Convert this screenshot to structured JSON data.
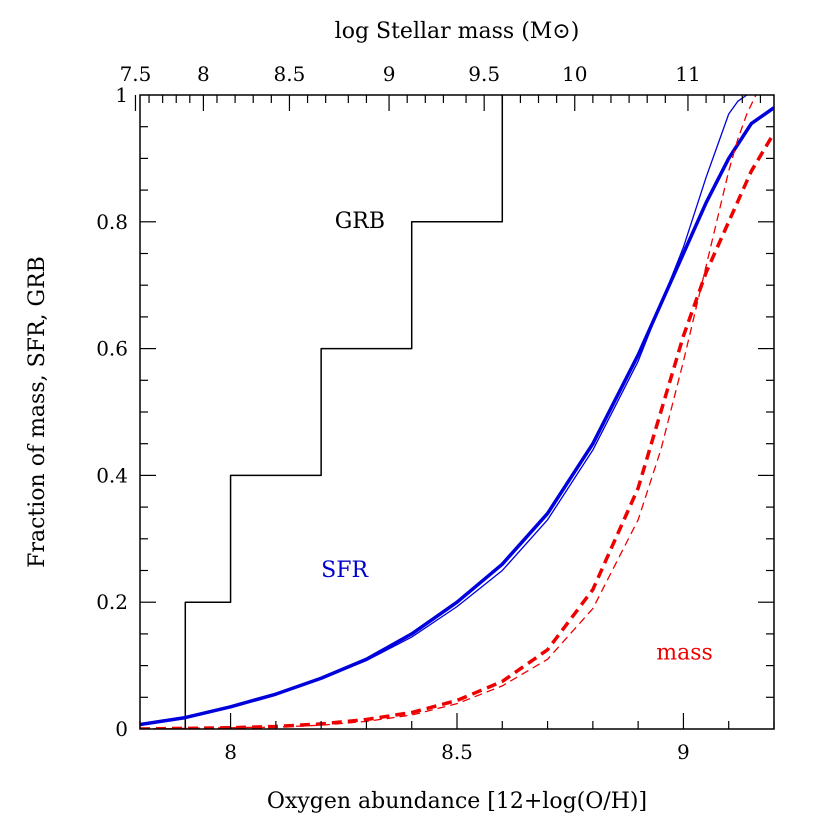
{
  "chart_data": {
    "type": "line",
    "xlabel": "Oxygen abundance [12+log(O/H)]",
    "ylabel": "Fraction of mass, SFR, GRB",
    "x2label": "log Stellar mass (M⊙)",
    "xlim": [
      7.8,
      9.2
    ],
    "ylim": [
      0,
      1
    ],
    "x_major_ticks": [
      8,
      8.5,
      9
    ],
    "x_major_tick_labels": [
      "8",
      "8.5",
      "9"
    ],
    "x_minor_step": 0.1,
    "y_major_ticks": [
      0,
      0.2,
      0.4,
      0.6,
      0.8,
      1
    ],
    "y_major_tick_labels": [
      "0",
      "0.2",
      "0.4",
      "0.6",
      "0.8",
      "1"
    ],
    "y_minor_step": 0.05,
    "top_axis": {
      "ticks": [
        {
          "label": "7.5",
          "oh": 7.79
        },
        {
          "label": "8",
          "oh": 7.94
        },
        {
          "label": "8.5",
          "oh": 8.13
        },
        {
          "label": "9",
          "oh": 8.35
        },
        {
          "label": "9.5",
          "oh": 8.56
        },
        {
          "label": "10",
          "oh": 8.76
        },
        {
          "label": "11",
          "oh": 9.01
        }
      ],
      "minor_ticks_oh": [
        7.82,
        7.85,
        7.88,
        7.91,
        7.97,
        8.01,
        8.05,
        8.09,
        8.17,
        8.21,
        8.26,
        8.3,
        8.39,
        8.43,
        8.47,
        8.52,
        8.6,
        8.64,
        8.68,
        8.72,
        8.8,
        8.84,
        8.88,
        8.92,
        8.96,
        9.05,
        9.09,
        9.13,
        9.17
      ]
    },
    "grid": false,
    "legend": "none",
    "annotations": [
      {
        "text": "GRB",
        "x": 8.23,
        "y": 0.79,
        "color": "#000000"
      },
      {
        "text": "SFR",
        "x": 8.2,
        "y": 0.24,
        "color": "#0000cc"
      },
      {
        "text": "mass",
        "x": 8.94,
        "y": 0.11,
        "color": "#ee0000"
      }
    ],
    "series": [
      {
        "id": "grb",
        "style": "step",
        "color": "#000000",
        "width": 1.5,
        "dash": "",
        "x": [
          7.9,
          7.9,
          8.0,
          8.0,
          8.2,
          8.2,
          8.4,
          8.4,
          8.6,
          8.6
        ],
        "y": [
          0,
          0.2,
          0.2,
          0.4,
          0.4,
          0.6,
          0.6,
          0.8,
          0.8,
          1.0
        ]
      },
      {
        "id": "sfr-thick",
        "style": "line",
        "color": "#0000dd",
        "width": 3.5,
        "dash": "",
        "x": [
          7.8,
          7.9,
          8.0,
          8.1,
          8.2,
          8.3,
          8.4,
          8.5,
          8.6,
          8.7,
          8.8,
          8.9,
          9.0,
          9.05,
          9.1,
          9.15,
          9.2
        ],
        "y": [
          0.007,
          0.018,
          0.035,
          0.055,
          0.08,
          0.11,
          0.15,
          0.2,
          0.26,
          0.34,
          0.45,
          0.59,
          0.75,
          0.83,
          0.9,
          0.955,
          0.98
        ]
      },
      {
        "id": "sfr-thin",
        "style": "line",
        "color": "#0000dd",
        "width": 1.3,
        "dash": "",
        "x": [
          7.8,
          7.9,
          8.0,
          8.1,
          8.2,
          8.3,
          8.4,
          8.5,
          8.6,
          8.7,
          8.8,
          8.9,
          9.0,
          9.05,
          9.08,
          9.1,
          9.12,
          9.14
        ],
        "y": [
          0.006,
          0.017,
          0.034,
          0.054,
          0.079,
          0.108,
          0.145,
          0.193,
          0.25,
          0.33,
          0.44,
          0.58,
          0.76,
          0.87,
          0.93,
          0.97,
          0.99,
          1.0
        ]
      },
      {
        "id": "mass-thick",
        "style": "line",
        "color": "#ee0000",
        "width": 3.5,
        "dash": "10,6",
        "x": [
          7.8,
          7.9,
          8.0,
          8.1,
          8.2,
          8.3,
          8.4,
          8.5,
          8.6,
          8.7,
          8.8,
          8.9,
          9.0,
          9.05,
          9.1,
          9.15,
          9.2
        ],
        "y": [
          0.0,
          0.001,
          0.002,
          0.004,
          0.008,
          0.015,
          0.026,
          0.045,
          0.075,
          0.125,
          0.22,
          0.38,
          0.62,
          0.72,
          0.8,
          0.88,
          0.94
        ]
      },
      {
        "id": "mass-thin",
        "style": "line",
        "color": "#ee0000",
        "width": 1.3,
        "dash": "8,5",
        "x": [
          7.8,
          7.9,
          8.0,
          8.1,
          8.2,
          8.3,
          8.4,
          8.5,
          8.6,
          8.7,
          8.8,
          8.9,
          8.95,
          9.0,
          9.05,
          9.08,
          9.1,
          9.12,
          9.14,
          9.16
        ],
        "y": [
          0.0,
          0.001,
          0.002,
          0.003,
          0.006,
          0.012,
          0.022,
          0.04,
          0.068,
          0.11,
          0.19,
          0.33,
          0.44,
          0.58,
          0.73,
          0.82,
          0.88,
          0.93,
          0.97,
          1.0
        ]
      }
    ]
  }
}
